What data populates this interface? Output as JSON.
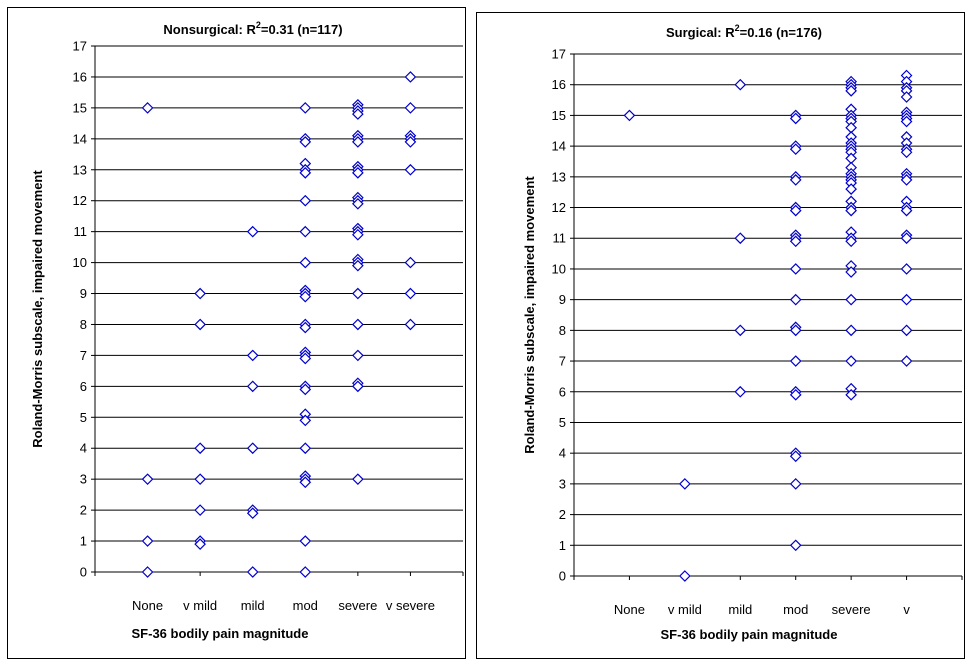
{
  "chart_data": [
    {
      "type": "scatter",
      "title": {
        "prefix": "Nonsurgical: R",
        "sup": "2",
        "suffix": "=0.31 (n=117)"
      },
      "xlabel": "SF-36 bodily pain magnitude",
      "ylabel": "Roland-Morris subscale, impaired movement",
      "categories": [
        "None",
        "v mild",
        "mild",
        "mod",
        "severe",
        "v severe"
      ],
      "yticks": [
        "0",
        "1",
        "2",
        "3",
        "4",
        "5",
        "6",
        "7",
        "8",
        "9",
        "10",
        "11",
        "12",
        "13",
        "14",
        "15",
        "16",
        "17"
      ],
      "ylim": [
        0,
        17
      ],
      "grid": true,
      "marker": "diamond",
      "marker_color": "#0000cc",
      "points": [
        [
          "None",
          15
        ],
        [
          "None",
          3
        ],
        [
          "None",
          1
        ],
        [
          "None",
          0
        ],
        [
          "v mild",
          9
        ],
        [
          "v mild",
          8
        ],
        [
          "v mild",
          4
        ],
        [
          "v mild",
          3
        ],
        [
          "v mild",
          2
        ],
        [
          "v mild",
          1
        ],
        [
          "v mild",
          0.9
        ],
        [
          "mild",
          11
        ],
        [
          "mild",
          7
        ],
        [
          "mild",
          6
        ],
        [
          "mild",
          4
        ],
        [
          "mild",
          2
        ],
        [
          "mild",
          1.9
        ],
        [
          "mild",
          0
        ],
        [
          "mod",
          15
        ],
        [
          "mod",
          14
        ],
        [
          "mod",
          13.9
        ],
        [
          "mod",
          13.2
        ],
        [
          "mod",
          13
        ],
        [
          "mod",
          12.9
        ],
        [
          "mod",
          12
        ],
        [
          "mod",
          11
        ],
        [
          "mod",
          10
        ],
        [
          "mod",
          9.1
        ],
        [
          "mod",
          9
        ],
        [
          "mod",
          8.9
        ],
        [
          "mod",
          8
        ],
        [
          "mod",
          7.9
        ],
        [
          "mod",
          7.1
        ],
        [
          "mod",
          7
        ],
        [
          "mod",
          6.9
        ],
        [
          "mod",
          6
        ],
        [
          "mod",
          5.9
        ],
        [
          "mod",
          5.1
        ],
        [
          "mod",
          4.9
        ],
        [
          "mod",
          4
        ],
        [
          "mod",
          3.1
        ],
        [
          "mod",
          3
        ],
        [
          "mod",
          2.9
        ],
        [
          "mod",
          1
        ],
        [
          "mod",
          0
        ],
        [
          "severe",
          15.1
        ],
        [
          "severe",
          15
        ],
        [
          "severe",
          14.9
        ],
        [
          "severe",
          14.8
        ],
        [
          "severe",
          14.1
        ],
        [
          "severe",
          14
        ],
        [
          "severe",
          13.9
        ],
        [
          "severe",
          13.1
        ],
        [
          "severe",
          13
        ],
        [
          "severe",
          12.9
        ],
        [
          "severe",
          12.1
        ],
        [
          "severe",
          12
        ],
        [
          "severe",
          11.9
        ],
        [
          "severe",
          11.1
        ],
        [
          "severe",
          11
        ],
        [
          "severe",
          10.9
        ],
        [
          "severe",
          10.1
        ],
        [
          "severe",
          10
        ],
        [
          "severe",
          9.9
        ],
        [
          "severe",
          9
        ],
        [
          "severe",
          8
        ],
        [
          "severe",
          7
        ],
        [
          "severe",
          6.1
        ],
        [
          "severe",
          6
        ],
        [
          "severe",
          3
        ],
        [
          "v severe",
          16
        ],
        [
          "v severe",
          15
        ],
        [
          "v severe",
          14.1
        ],
        [
          "v severe",
          14
        ],
        [
          "v severe",
          13.9
        ],
        [
          "v severe",
          13
        ],
        [
          "v severe",
          10
        ],
        [
          "v severe",
          9
        ],
        [
          "v severe",
          8
        ]
      ]
    },
    {
      "type": "scatter",
      "title": {
        "prefix": "Surgical: R",
        "sup": "2",
        "suffix": "=0.16 (n=176)"
      },
      "xlabel": "SF-36 bodily pain magnitude",
      "ylabel": "Roland-Morris subscale, impaired movement",
      "categories": [
        "None",
        "v mild",
        "mild",
        "mod",
        "severe",
        "v severe"
      ],
      "x_tick_labels": [
        "None",
        "v mild",
        "mild",
        "mod",
        "severe",
        "v"
      ],
      "x_tick_overflow": "severe",
      "yticks": [
        "0",
        "1",
        "2",
        "3",
        "4",
        "5",
        "6",
        "7",
        "8",
        "9",
        "10",
        "11",
        "12",
        "13",
        "14",
        "15",
        "16",
        "17"
      ],
      "ylim": [
        0,
        17
      ],
      "grid": true,
      "marker": "diamond",
      "marker_color": "#0000cc",
      "points": [
        [
          "None",
          15
        ],
        [
          "v mild",
          3
        ],
        [
          "v mild",
          0
        ],
        [
          "mild",
          16
        ],
        [
          "mild",
          11
        ],
        [
          "mild",
          8
        ],
        [
          "mild",
          6
        ],
        [
          "mod",
          15
        ],
        [
          "mod",
          14.9
        ],
        [
          "mod",
          14
        ],
        [
          "mod",
          13.9
        ],
        [
          "mod",
          13
        ],
        [
          "mod",
          12.9
        ],
        [
          "mod",
          12
        ],
        [
          "mod",
          11.9
        ],
        [
          "mod",
          11.1
        ],
        [
          "mod",
          11
        ],
        [
          "mod",
          10.9
        ],
        [
          "mod",
          10
        ],
        [
          "mod",
          9
        ],
        [
          "mod",
          8.1
        ],
        [
          "mod",
          8
        ],
        [
          "mod",
          7
        ],
        [
          "mod",
          6
        ],
        [
          "mod",
          5.9
        ],
        [
          "mod",
          4
        ],
        [
          "mod",
          3.9
        ],
        [
          "mod",
          3
        ],
        [
          "mod",
          1
        ],
        [
          "severe",
          16.1
        ],
        [
          "severe",
          16
        ],
        [
          "severe",
          15.9
        ],
        [
          "severe",
          15.8
        ],
        [
          "severe",
          15.2
        ],
        [
          "severe",
          15
        ],
        [
          "severe",
          14.9
        ],
        [
          "severe",
          14.8
        ],
        [
          "severe",
          14.6
        ],
        [
          "severe",
          14.3
        ],
        [
          "severe",
          14.1
        ],
        [
          "severe",
          14
        ],
        [
          "severe",
          13.9
        ],
        [
          "severe",
          13.8
        ],
        [
          "severe",
          13.6
        ],
        [
          "severe",
          13.3
        ],
        [
          "severe",
          13.1
        ],
        [
          "severe",
          13
        ],
        [
          "severe",
          12.9
        ],
        [
          "severe",
          12.8
        ],
        [
          "severe",
          12.6
        ],
        [
          "severe",
          12.2
        ],
        [
          "severe",
          12
        ],
        [
          "severe",
          11.9
        ],
        [
          "severe",
          11.2
        ],
        [
          "severe",
          11
        ],
        [
          "severe",
          10.9
        ],
        [
          "severe",
          10.1
        ],
        [
          "severe",
          9.9
        ],
        [
          "severe",
          9
        ],
        [
          "severe",
          8
        ],
        [
          "severe",
          7
        ],
        [
          "severe",
          6.1
        ],
        [
          "severe",
          5.9
        ],
        [
          "v severe",
          16.3
        ],
        [
          "v severe",
          16.1
        ],
        [
          "v severe",
          15.9
        ],
        [
          "v severe",
          15.8
        ],
        [
          "v severe",
          15.6
        ],
        [
          "v severe",
          15.1
        ],
        [
          "v severe",
          15
        ],
        [
          "v severe",
          14.9
        ],
        [
          "v severe",
          14.8
        ],
        [
          "v severe",
          14.3
        ],
        [
          "v severe",
          14.1
        ],
        [
          "v severe",
          13.9
        ],
        [
          "v severe",
          13.8
        ],
        [
          "v severe",
          13.1
        ],
        [
          "v severe",
          13
        ],
        [
          "v severe",
          12.9
        ],
        [
          "v severe",
          12.2
        ],
        [
          "v severe",
          12
        ],
        [
          "v severe",
          11.9
        ],
        [
          "v severe",
          11.1
        ],
        [
          "v severe",
          11
        ],
        [
          "v severe",
          10
        ],
        [
          "v severe",
          9
        ],
        [
          "v severe",
          8
        ],
        [
          "v severe",
          7
        ]
      ]
    }
  ]
}
